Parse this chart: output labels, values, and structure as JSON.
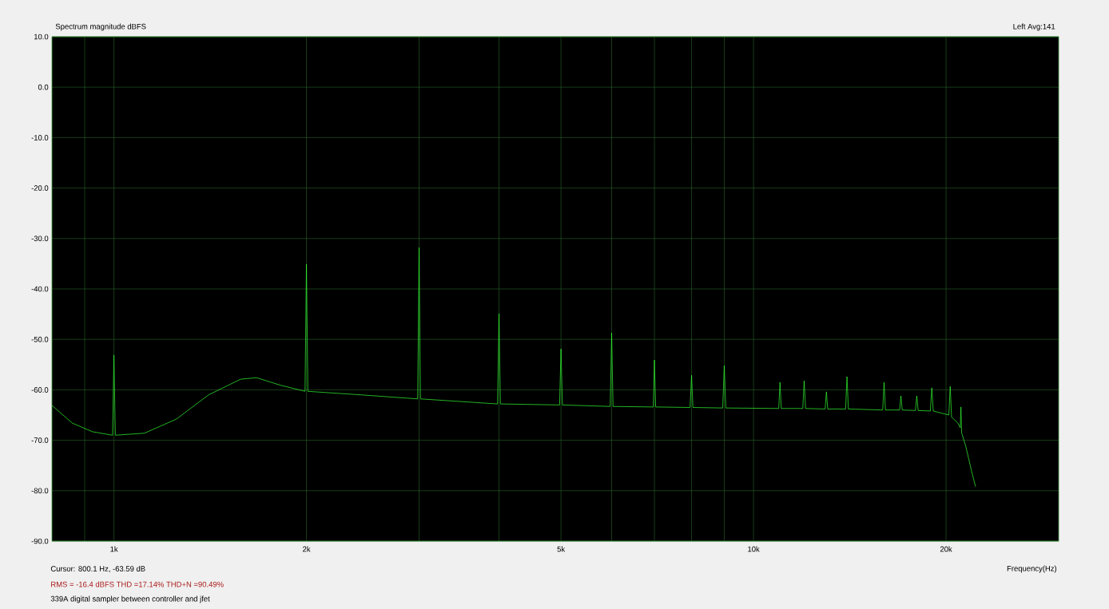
{
  "chart_data": {
    "type": "line",
    "title": "Spectrum magnitude dBFS",
    "xlabel": "Frequency(Hz)",
    "annotations": [
      "Left  Avg:141",
      "Cursor:   800.1 Hz, -63.59 dB",
      "RMS =  -16.4 dBFS   THD =17.14%   THD+N =90.49%",
      "339A digital sampler between controller and jfet"
    ],
    "x": [
      800,
      861,
      925,
      995,
      1000,
      1005,
      1116,
      1252,
      1406,
      1578,
      1671,
      1823,
      1990,
      2000,
      2010,
      2432,
      2985,
      3000,
      3015,
      3980,
      4000,
      4020,
      4975,
      5000,
      5025,
      5970,
      6000,
      6030,
      6970,
      7000,
      7030,
      7960,
      8000,
      8040,
      8950,
      9000,
      9050,
      10950,
      11000,
      11050,
      11940,
      12000,
      12060,
      12940,
      13000,
      13060,
      13930,
      14000,
      14070,
      15920,
      16000,
      16080,
      16920,
      17000,
      17080,
      17910,
      18000,
      18090,
      18900,
      19000,
      19100,
      20200,
      20300,
      20400,
      20870,
      21050,
      21100,
      21150,
      21480,
      21920,
      22240
    ],
    "series": [
      {
        "color": "#33ff33",
        "values": [
          -63.1,
          -66.6,
          -68.3,
          -69,
          -53.1,
          -69,
          -68.6,
          -65.8,
          -61.0,
          -57.9,
          -57.6,
          -59.1,
          -60.3,
          -35.1,
          -60.3,
          -61,
          -61.8,
          -31.8,
          -61.8,
          -62.8,
          -44.9,
          -62.8,
          -63,
          -51.9,
          -63,
          -63.3,
          -48.7,
          -63.3,
          -63.4,
          -54.1,
          -63.4,
          -63.5,
          -57.1,
          -63.5,
          -63.6,
          -55.2,
          -63.6,
          -63.7,
          -58.5,
          -63.7,
          -63.7,
          -58.2,
          -63.7,
          -63.8,
          -60.4,
          -63.8,
          -63.8,
          -57.4,
          -63.8,
          -64,
          -58.5,
          -64,
          -64,
          -61.2,
          -64,
          -64.1,
          -61.2,
          -64.1,
          -64.2,
          -59.6,
          -64.2,
          -65,
          -59.3,
          -65.4,
          -66.6,
          -67.5,
          -63.4,
          -68.5,
          -71.3,
          -76.1,
          -79.2
        ]
      }
    ],
    "log": "x",
    "xlim": [
      800,
      30000
    ],
    "ylim": [
      -90,
      10
    ],
    "xticks": [
      {
        "value": 900,
        "label": null
      },
      {
        "value": 1000,
        "label": "1k"
      },
      {
        "value": 2000,
        "label": "2k"
      },
      {
        "value": 3000,
        "label": null
      },
      {
        "value": 4000,
        "label": null
      },
      {
        "value": 5000,
        "label": "5k"
      },
      {
        "value": 6000,
        "label": null
      },
      {
        "value": 7000,
        "label": null
      },
      {
        "value": 8000,
        "label": null
      },
      {
        "value": 9000,
        "label": null
      },
      {
        "value": 10000,
        "label": "10k"
      },
      {
        "value": 20000,
        "label": "20k"
      }
    ],
    "yticks": [
      {
        "value": -90,
        "label": "-90.0"
      },
      {
        "value": -80,
        "label": "-80.0"
      },
      {
        "value": -70,
        "label": "-70.0"
      },
      {
        "value": -60,
        "label": "-60.0"
      },
      {
        "value": -50,
        "label": "-50.0"
      },
      {
        "value": -40,
        "label": "-40.0"
      },
      {
        "value": -30,
        "label": "-30.0"
      },
      {
        "value": -20,
        "label": "-20.0"
      },
      {
        "value": -10,
        "label": "-10.0"
      },
      {
        "value": 0,
        "label": "0.0"
      },
      {
        "value": 10,
        "label": "10.0"
      }
    ],
    "grid": true
  }
}
